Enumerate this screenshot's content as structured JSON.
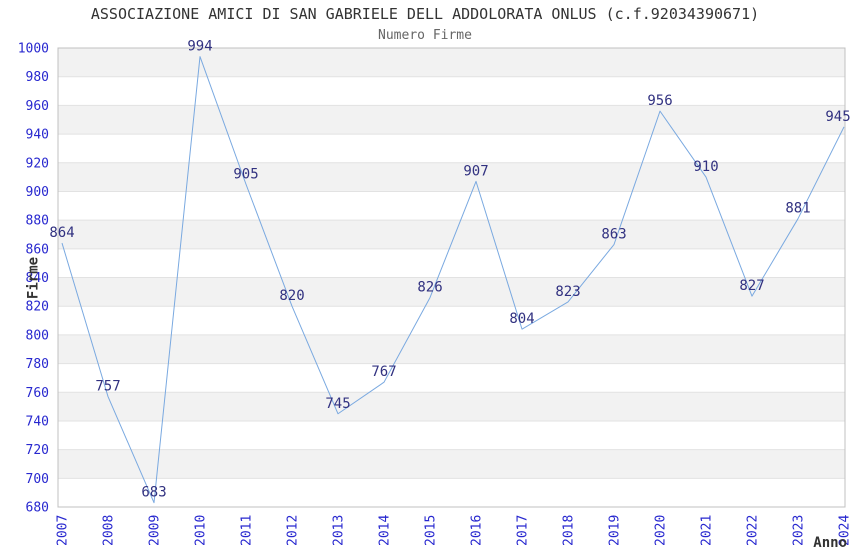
{
  "header": {
    "title": "ASSOCIAZIONE AMICI DI SAN GABRIELE DELL ADDOLORATA ONLUS (c.f.92034390671)",
    "subtitle": "Numero Firme"
  },
  "chart_data": {
    "type": "line",
    "x": [
      2007,
      2008,
      2009,
      2010,
      2011,
      2012,
      2013,
      2014,
      2015,
      2016,
      2017,
      2018,
      2019,
      2020,
      2021,
      2022,
      2023,
      2024
    ],
    "series": [
      {
        "name": "Numero Firme",
        "values": [
          864,
          757,
          683,
          994,
          905,
          820,
          745,
          767,
          826,
          907,
          804,
          823,
          863,
          956,
          910,
          827,
          881,
          945
        ]
      }
    ],
    "title": "ASSOCIAZIONE AMICI DI SAN GABRIELE DELL ADDOLORATA ONLUS (c.f.92034390671)",
    "subtitle": "Numero Firme",
    "xlabel": "Anno",
    "ylabel": "Firme",
    "ylim": [
      680,
      1000
    ],
    "ytick_step": 20,
    "legend": "none",
    "grid": "horizontal alternating bands with gridlines every 20",
    "data_labels_visible": true,
    "colors": {
      "line": "#7aa9e0",
      "tick_label": "#2727cf",
      "data_label": "#313180",
      "band": "#f2f2f2",
      "gridline": "#e2e2e2",
      "plot_border": "#c0c0c0",
      "title": "#333333",
      "subtitle": "#666666",
      "axis_label": "#333333"
    }
  }
}
